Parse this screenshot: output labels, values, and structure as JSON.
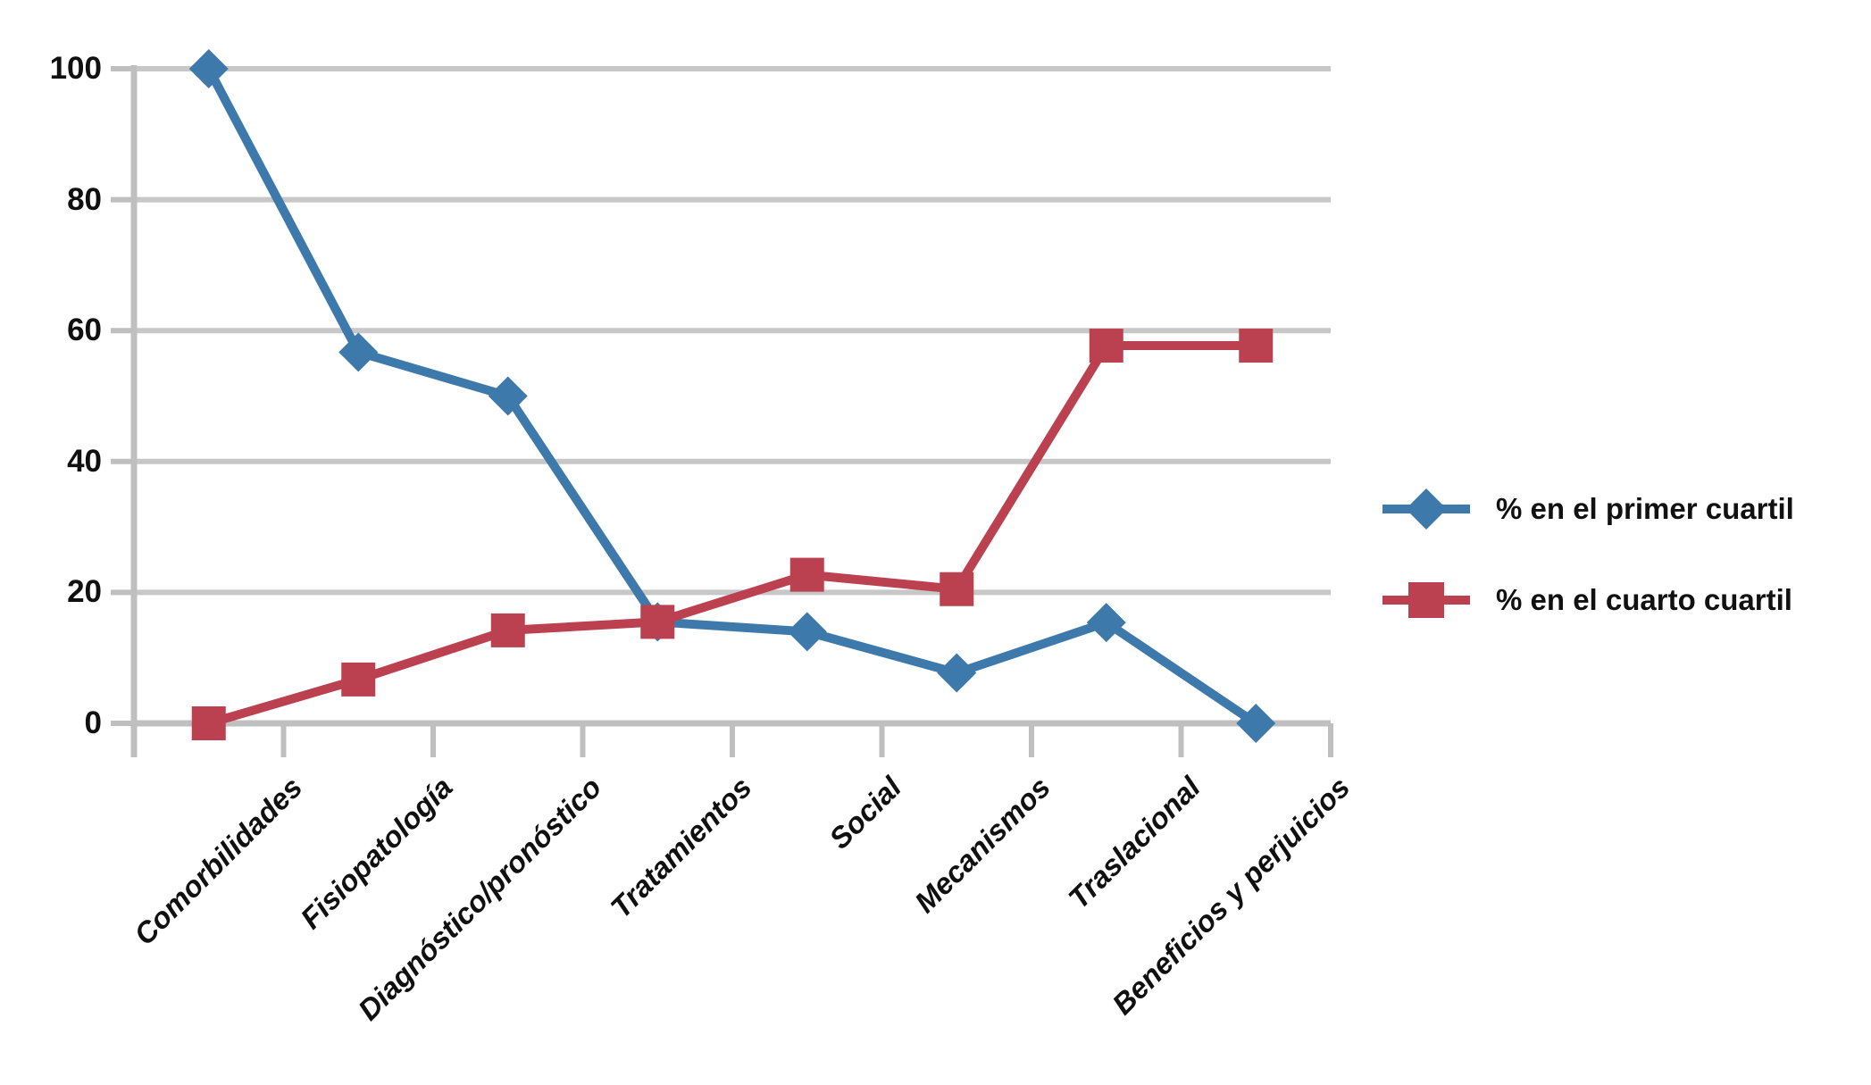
{
  "chart_data": {
    "type": "line",
    "categories": [
      "Comorbilidades",
      "Fisiopatología",
      "Diagnóstico/pronóstico",
      "Tratamientos",
      "Social",
      "Mecanismos",
      "Traslacional",
      "Beneficios y perjuicios"
    ],
    "series": [
      {
        "name": "% en el primer cuartil",
        "marker": "diamond",
        "color": "#3E79AC",
        "values": [
          100,
          56.7,
          50,
          15.5,
          14,
          7.7,
          15.4,
          0
        ]
      },
      {
        "name": "% en el cuarto cuartil",
        "marker": "square",
        "color": "#BC4150",
        "values": [
          0,
          6.7,
          14.2,
          15.5,
          22.7,
          20.5,
          57.7,
          57.7
        ]
      }
    ],
    "title": "",
    "xlabel": "",
    "ylabel": "",
    "ylim": [
      0,
      100
    ],
    "yticks": [
      0,
      20,
      40,
      60,
      80,
      100
    ],
    "grid": "horizontal",
    "legend_position": "right",
    "gridline_color": "#C7C7C7",
    "axis_color": "#BFBFBF",
    "text_color": "#101010",
    "background": "#FFFFFF"
  }
}
